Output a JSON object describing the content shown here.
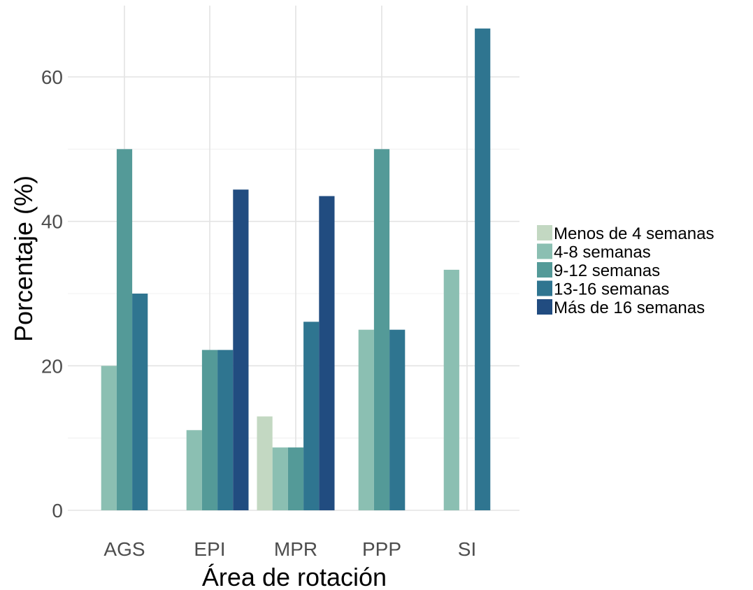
{
  "chart_data": {
    "type": "bar",
    "xlabel": "Área de rotación",
    "ylabel": "Porcentaje (%)",
    "ylim": [
      0,
      67
    ],
    "y_ticks": [
      0,
      20,
      40,
      60
    ],
    "grid": true,
    "legend_position": "right",
    "categories": [
      "AGS",
      "EPI",
      "MPR",
      "PPP",
      "SI"
    ],
    "series": [
      {
        "name": "Menos de 4 semanas",
        "color": "#c3d8c2",
        "values": [
          null,
          null,
          13.0,
          null,
          null
        ]
      },
      {
        "name": "4-8 semanas",
        "color": "#8bbfb2",
        "values": [
          20.0,
          11.1,
          8.7,
          25.0,
          33.3
        ]
      },
      {
        "name": "9-12 semanas",
        "color": "#549a98",
        "values": [
          50.0,
          22.2,
          8.7,
          50.0,
          null
        ]
      },
      {
        "name": "13-16 semanas",
        "color": "#2f7590",
        "values": [
          30.0,
          22.2,
          26.1,
          25.0,
          66.7
        ]
      },
      {
        "name": "Más de 16 semanas",
        "color": "#214c80",
        "values": [
          null,
          44.4,
          43.5,
          null,
          null
        ]
      }
    ]
  }
}
